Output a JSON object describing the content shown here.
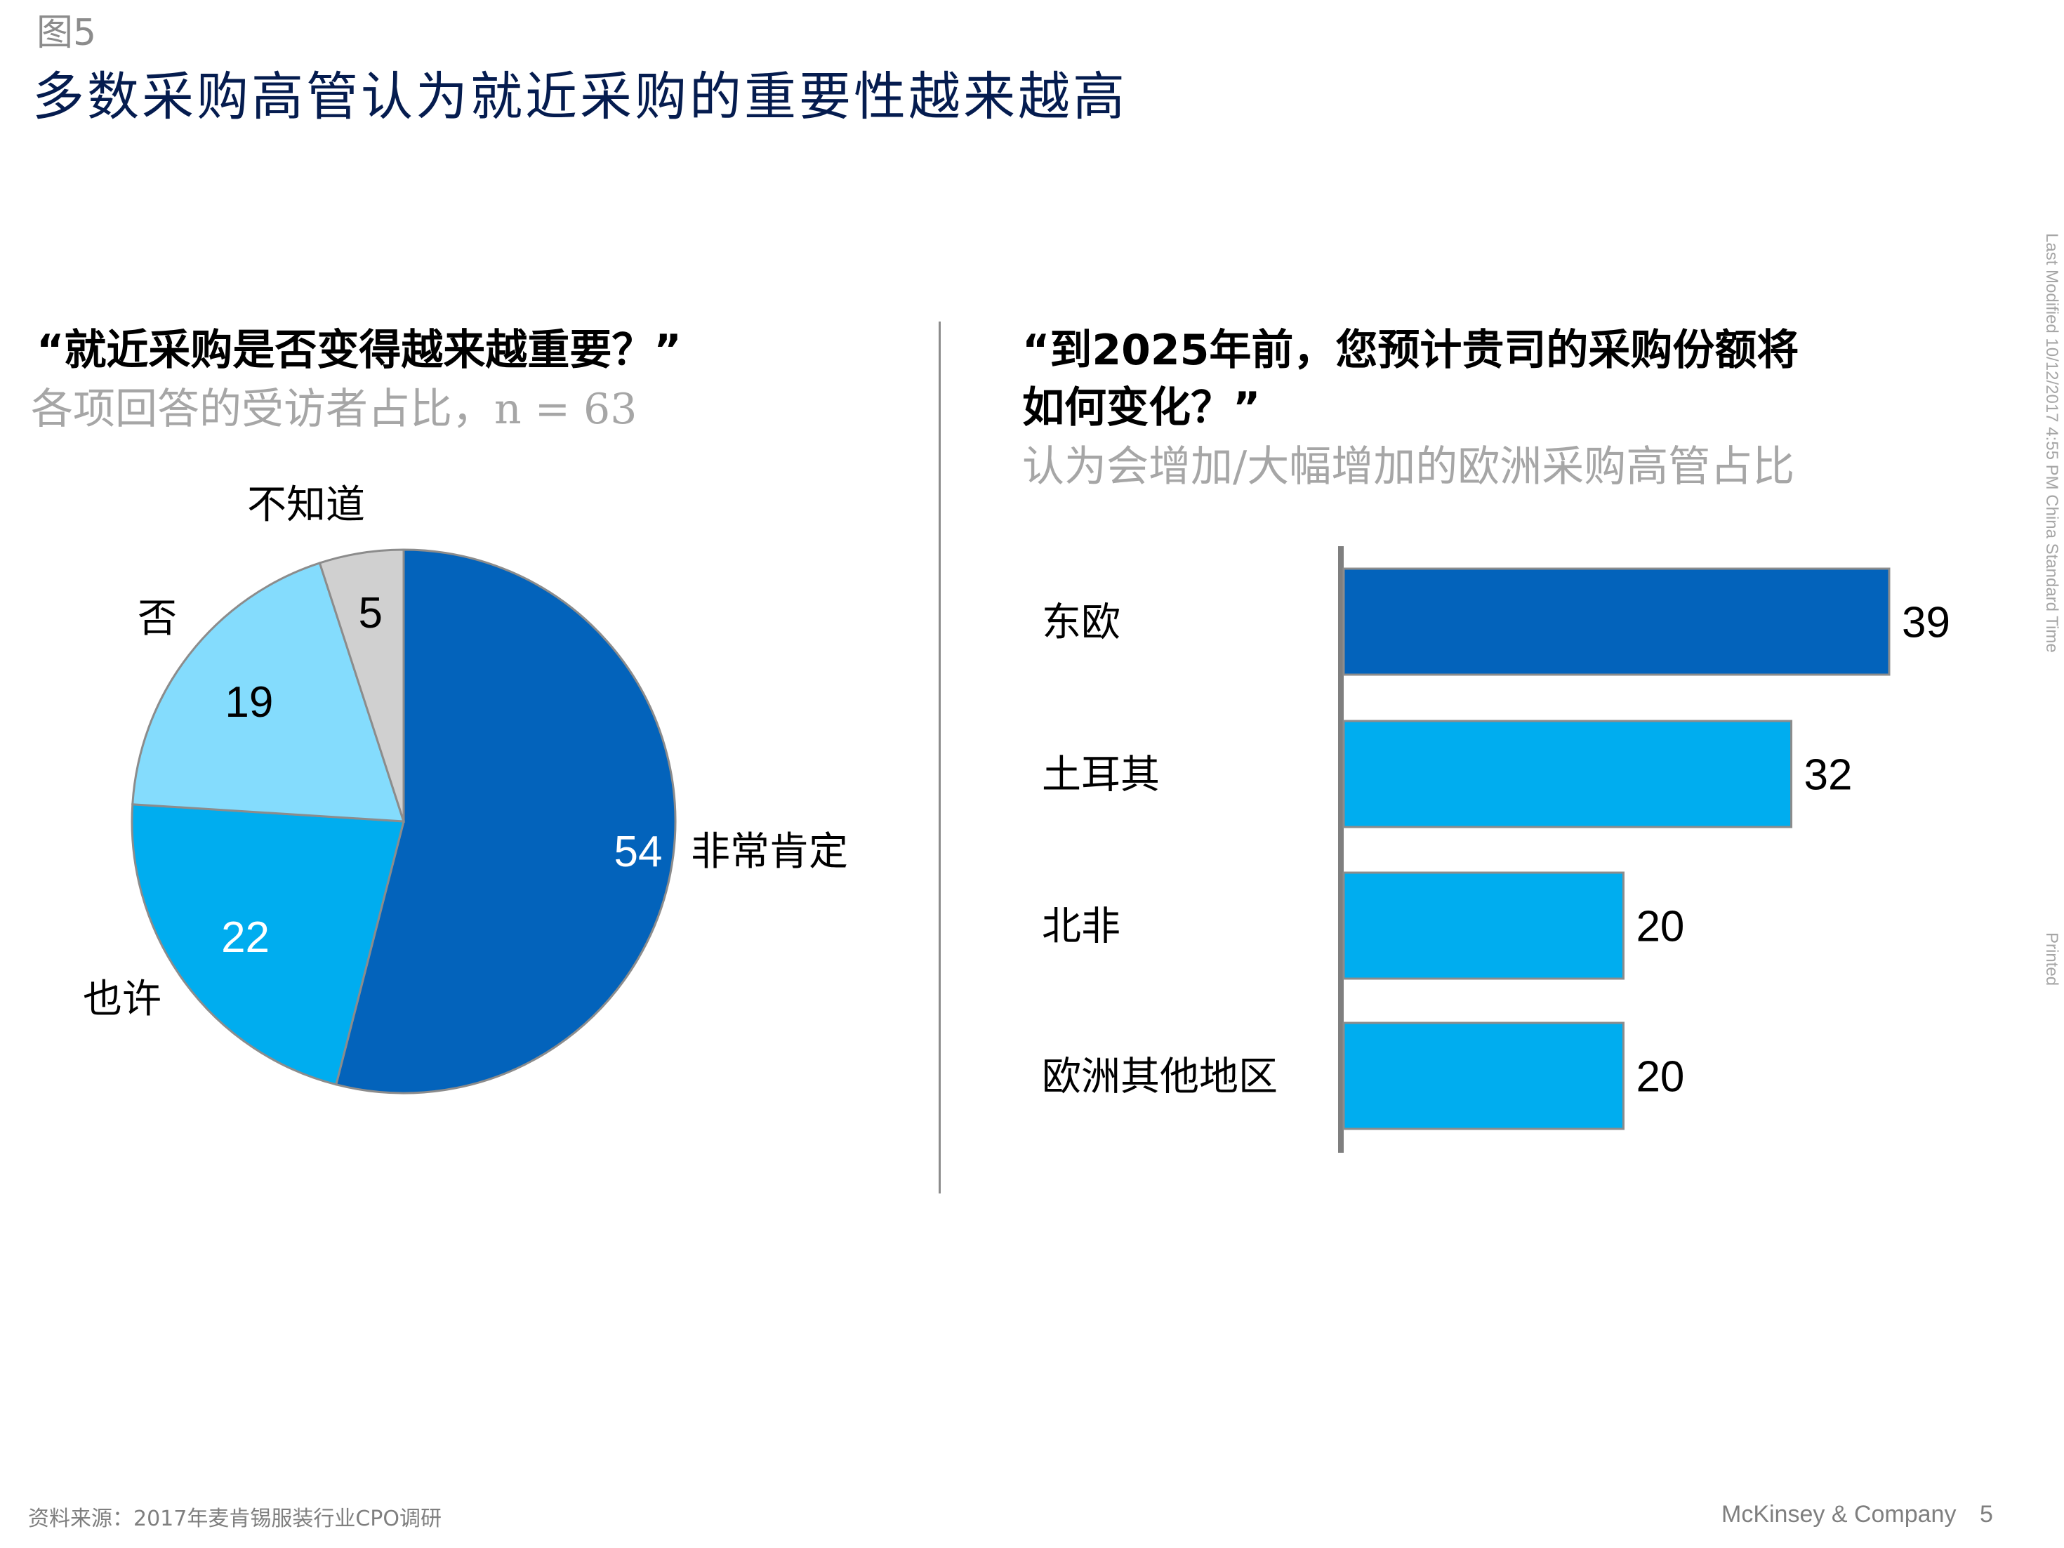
{
  "header": {
    "figure_label": "图5",
    "title": "多数采购高管认为就近采购的重要性越来越高"
  },
  "left_panel": {
    "question": "“就近采购是否变得越来越重要？”",
    "subtitle": "各项回答的受访者占比，n = 63"
  },
  "right_panel": {
    "question_line1": "“到2025年前，您预计贵司的采购份额将",
    "question_line2": "如何变化？”",
    "subtitle": "认为会增加/大幅增加的欧洲采购高管占比"
  },
  "side_note": "Last Modified 10/12/2017 4:55 PM China Standard Time",
  "printed_note": "Printed",
  "footer": {
    "source": "资料来源：2017年麦肯锡服装行业CPO调研",
    "brand": "McKinsey & Company",
    "page": "5"
  },
  "colors": {
    "dark_blue": "#0363bb",
    "mid_blue": "#00adef",
    "light_blue": "#84dcfd",
    "grey": "#d0d0d0",
    "title_navy": "#051c4f"
  },
  "chart_data": [
    {
      "type": "pie",
      "slices": [
        {
          "label": "非常肯定",
          "value": 54,
          "color": "#0363bb",
          "value_color": "#ffffff"
        },
        {
          "label": "也许",
          "value": 22,
          "color": "#00adef",
          "value_color": "#ffffff"
        },
        {
          "label": "否",
          "value": 19,
          "color": "#84dcfd",
          "value_color": "#000000"
        },
        {
          "label": "不知道",
          "value": 5,
          "color": "#d0d0d0",
          "value_color": "#000000"
        }
      ]
    },
    {
      "type": "bar",
      "orientation": "horizontal",
      "categories": [
        "东欧",
        "土耳其",
        "北非",
        "欧洲其他地区"
      ],
      "values": [
        39,
        32,
        20,
        20
      ],
      "colors": [
        "#0363bb",
        "#00adef",
        "#00adef",
        "#00adef"
      ]
    }
  ]
}
